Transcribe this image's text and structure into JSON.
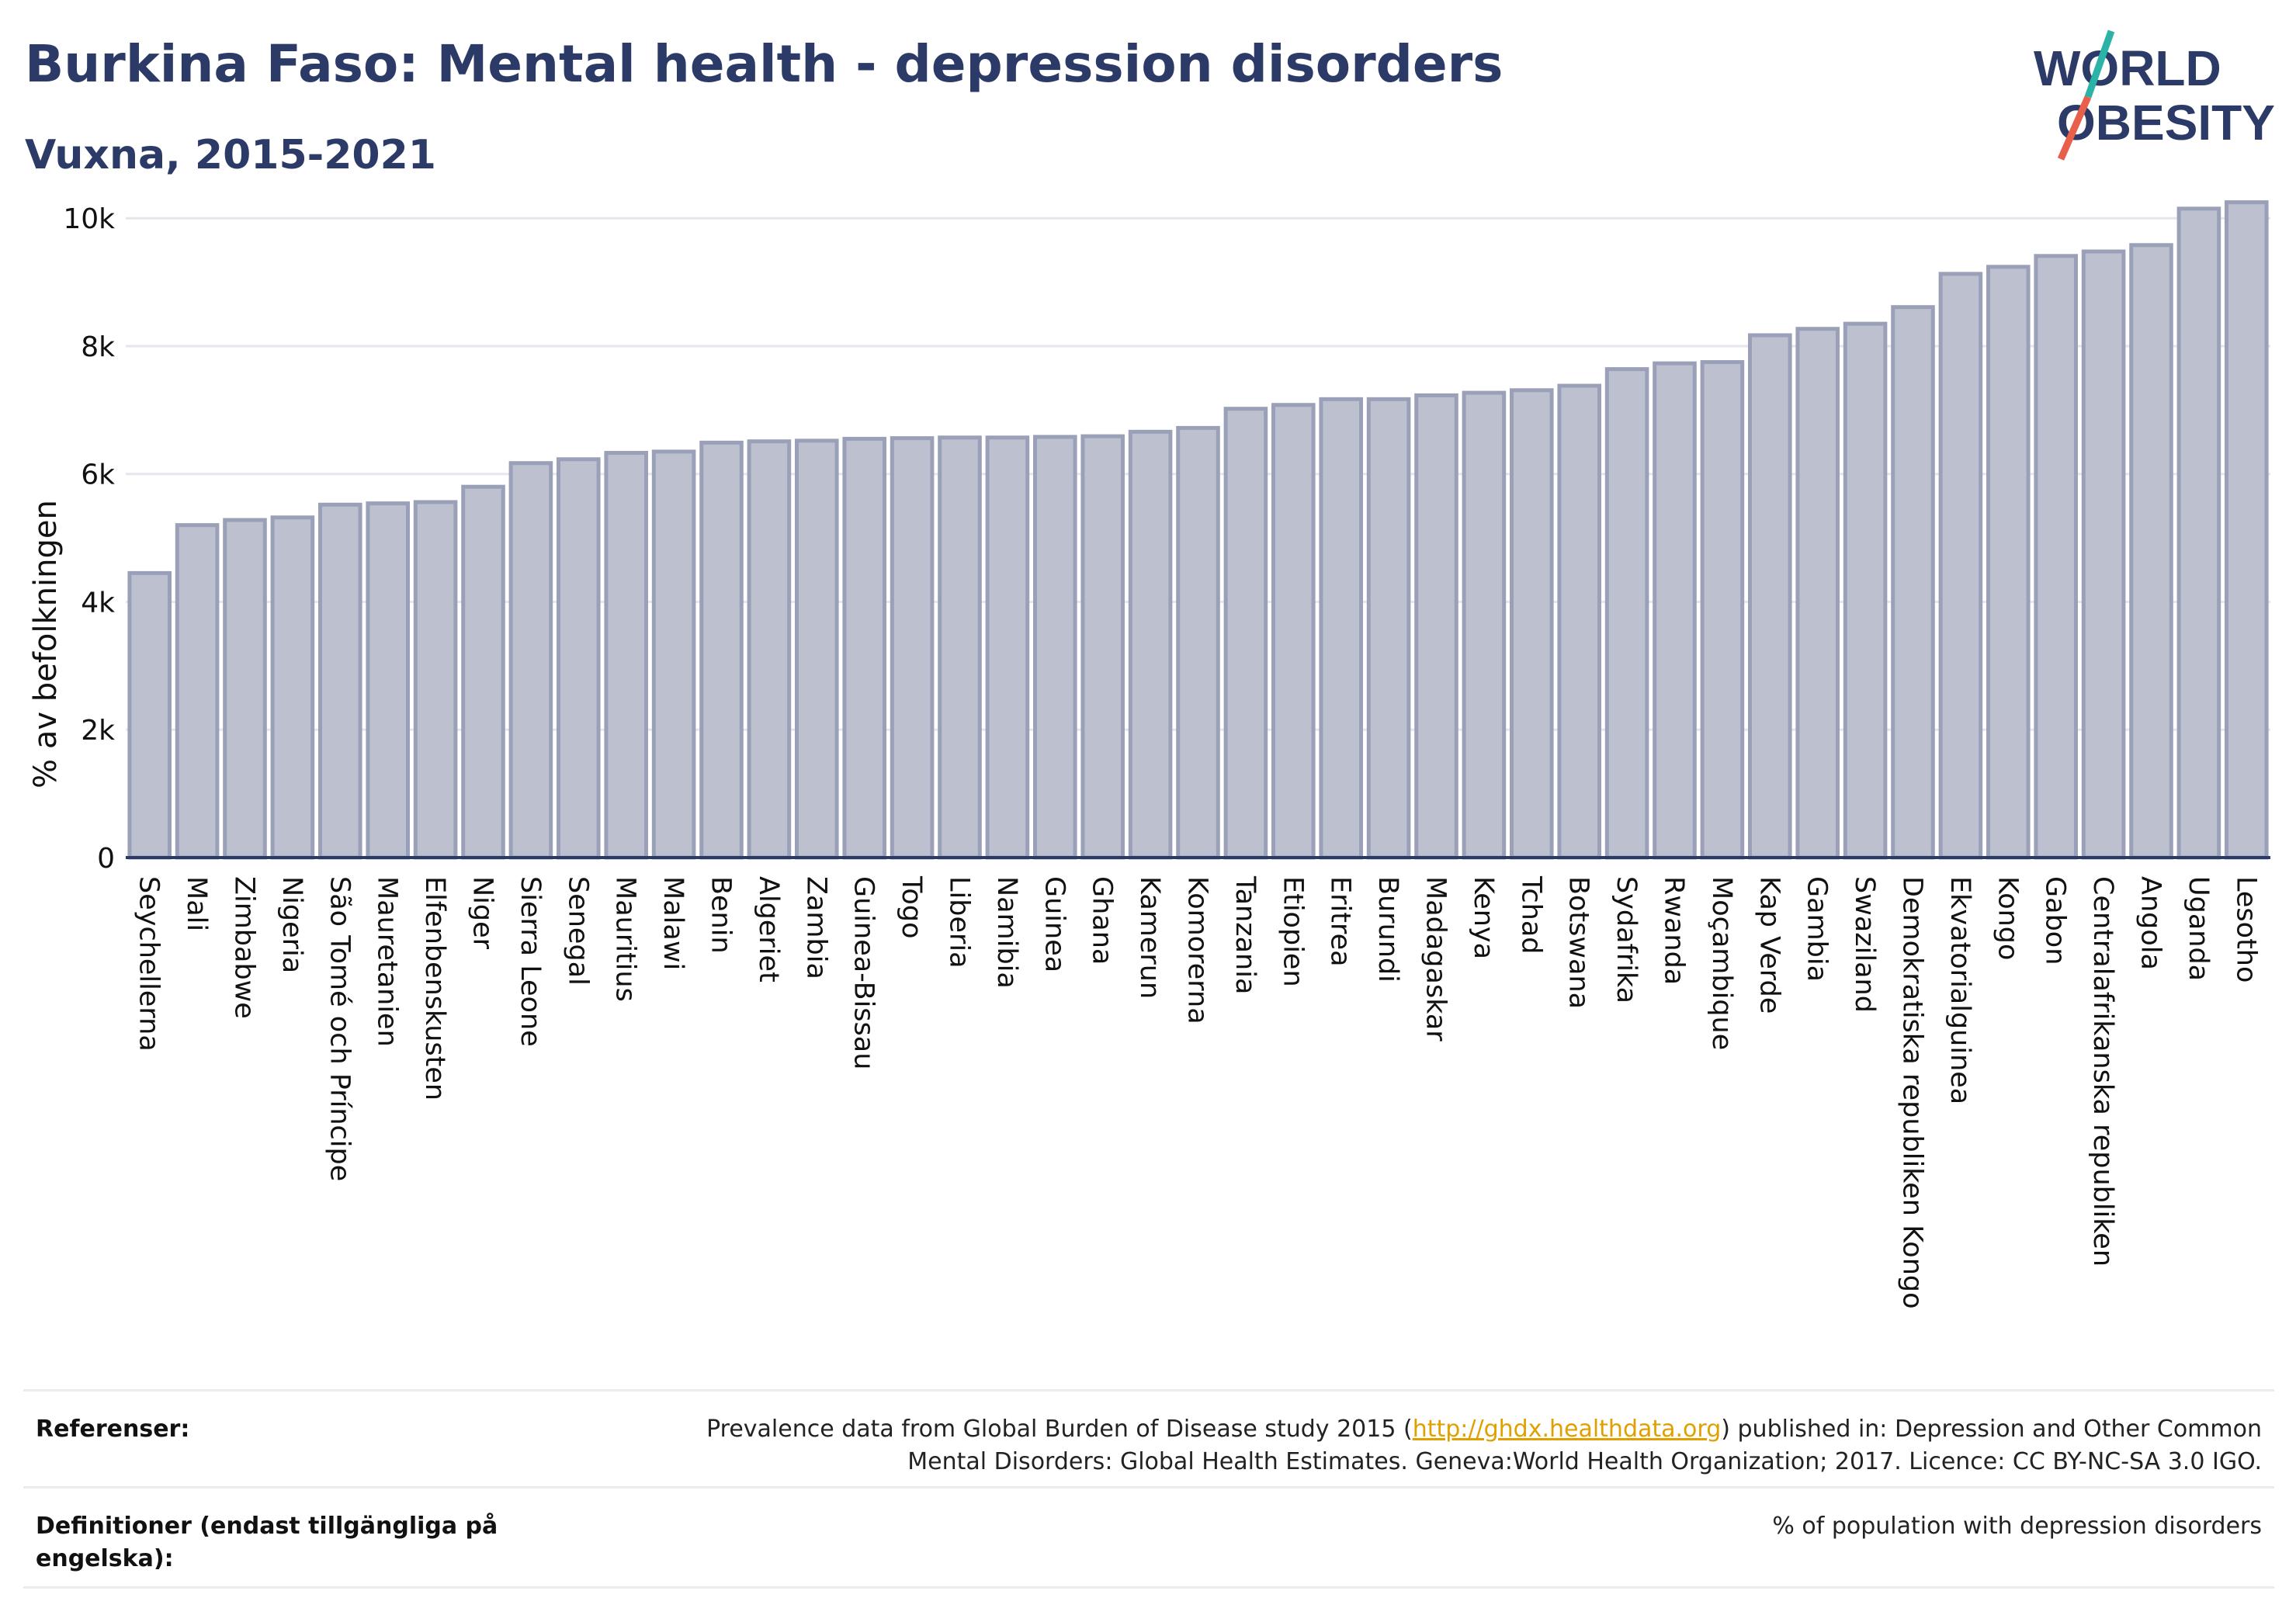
{
  "header": {
    "title": "Burkina Faso: Mental health - depression disorders",
    "subtitle": "Vuxna, 2015-2021"
  },
  "logo": {
    "line1": "WORLD",
    "line2": "OBESITY",
    "color_text": "#2b3a67",
    "color_slash_top": "#2bb3a8",
    "color_slash_bottom": "#e8604c"
  },
  "chart_data": {
    "type": "bar",
    "ylabel": "% av befolkningen",
    "ylim": [
      0,
      10500
    ],
    "yticks": [
      0,
      2000,
      4000,
      6000,
      8000,
      10000
    ],
    "ytick_labels": [
      "0",
      "2k",
      "4k",
      "6k",
      "8k",
      "10k"
    ],
    "grid": true,
    "bar_color": "#bcc0cf",
    "bar_edge_color": "#9aa0b8",
    "categories": [
      "Seychellerna",
      "Mali",
      "Zimbabwe",
      "Nigeria",
      "São Tomé och Príncipe",
      "Mauretanien",
      "Elfenbenskusten",
      "Niger",
      "Sierra Leone",
      "Senegal",
      "Mauritius",
      "Malawi",
      "Benin",
      "Algeriet",
      "Zambia",
      "Guinea-Bissau",
      "Togo",
      "Liberia",
      "Namibia",
      "Guinea",
      "Ghana",
      "Kamerun",
      "Komorerna",
      "Tanzania",
      "Etiopien",
      "Eritrea",
      "Burundi",
      "Madagaskar",
      "Kenya",
      "Tchad",
      "Botswana",
      "Sydafrika",
      "Rwanda",
      "Moçambique",
      "Kap Verde",
      "Gambia",
      "Swaziland",
      "Demokratiska republiken Kongo",
      "Ekvatorialguinea",
      "Kongo",
      "Gabon",
      "Centralafrikanska republiken",
      "Angola",
      "Uganda",
      "Lesotho"
    ],
    "values": [
      4450,
      5200,
      5280,
      5320,
      5520,
      5540,
      5560,
      5800,
      6170,
      6230,
      6330,
      6350,
      6490,
      6510,
      6520,
      6550,
      6560,
      6570,
      6570,
      6580,
      6590,
      6660,
      6720,
      7020,
      7080,
      7170,
      7170,
      7230,
      7270,
      7310,
      7380,
      7640,
      7730,
      7750,
      8170,
      8270,
      8350,
      8610,
      9130,
      9240,
      9410,
      9480,
      9580,
      10150,
      10250
    ]
  },
  "footer": {
    "references_label": "Referenser:",
    "references_before": "Prevalence data from Global Burden of Disease study 2015 (",
    "references_link": "http://ghdx.healthdata.org",
    "references_after_line1": ") published in: Depression and Other Common",
    "references_line2": "Mental Disorders: Global Health Estimates. Geneva:World Health Organization; 2017. Licence: CC BY-NC-SA 3.0 IGO.",
    "definitions_label": "Definitioner (endast tillgängliga på engelska):",
    "definitions_text": "% of population with depression disorders"
  }
}
